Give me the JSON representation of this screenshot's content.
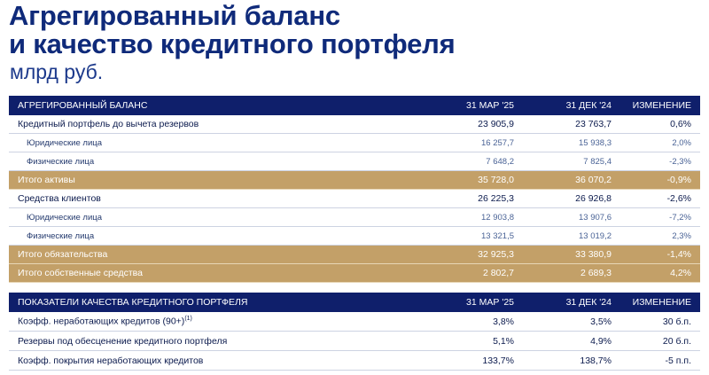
{
  "title_line1": "Агрегированный баланс",
  "title_line2": "и качество кредитного портфеля",
  "subtitle": "млрд руб.",
  "balance": {
    "headers": [
      "АГРЕГИРОВАННЫЙ БАЛАНС",
      "31 МАР '25",
      "31 ДЕК '24",
      "ИЗМЕНЕНИЕ"
    ],
    "rows": [
      {
        "type": "main",
        "label": "Кредитный портфель до вычета резервов",
        "v1": "23 905,9",
        "v2": "23 763,7",
        "chg": "0,6%"
      },
      {
        "type": "sub",
        "label": "Юридические лица",
        "v1": "16 257,7",
        "v2": "15 938,3",
        "chg": "2,0%"
      },
      {
        "type": "sub",
        "label": "Физические лица",
        "v1": "7 648,2",
        "v2": "7 825,4",
        "chg": "-2,3%"
      },
      {
        "type": "total",
        "label": "Итого активы",
        "v1": "35 728,0",
        "v2": "36 070,2",
        "chg": "-0,9%"
      },
      {
        "type": "main",
        "label": "Средства клиентов",
        "v1": "26 225,3",
        "v2": "26 926,8",
        "chg": "-2,6%"
      },
      {
        "type": "sub",
        "label": "Юридические лица",
        "v1": "12 903,8",
        "v2": "13 907,6",
        "chg": "-7,2%"
      },
      {
        "type": "sub",
        "label": "Физические лица",
        "v1": "13 321,5",
        "v2": "13 019,2",
        "chg": "2,3%"
      },
      {
        "type": "total",
        "label": "Итого обязательства",
        "v1": "32 925,3",
        "v2": "33 380,9",
        "chg": "-1,4%"
      },
      {
        "type": "total",
        "label": "Итого собственные средства",
        "v1": "2 802,7",
        "v2": "2 689,3",
        "chg": "4,2%"
      }
    ]
  },
  "quality": {
    "headers": [
      "ПОКАЗАТЕЛИ КАЧЕСТВА КРЕДИТНОГО ПОРТФЕЛЯ",
      "31 МАР '25",
      "31 ДЕК '24",
      "ИЗМЕНЕНИЕ"
    ],
    "rows": [
      {
        "label": "Коэфф. неработающих кредитов (90+)",
        "sup": "(1)",
        "v1": "3,8%",
        "v2": "3,5%",
        "chg": "30 б.п."
      },
      {
        "label": "Резервы под обесценение кредитного портфеля",
        "sup": "",
        "v1": "5,1%",
        "v2": "4,9%",
        "chg": "20 б.п."
      },
      {
        "label": "Коэфф. покрытия неработающих кредитов",
        "sup": "",
        "v1": "133,7%",
        "v2": "138,7%",
        "chg": "-5 п.п."
      }
    ]
  }
}
